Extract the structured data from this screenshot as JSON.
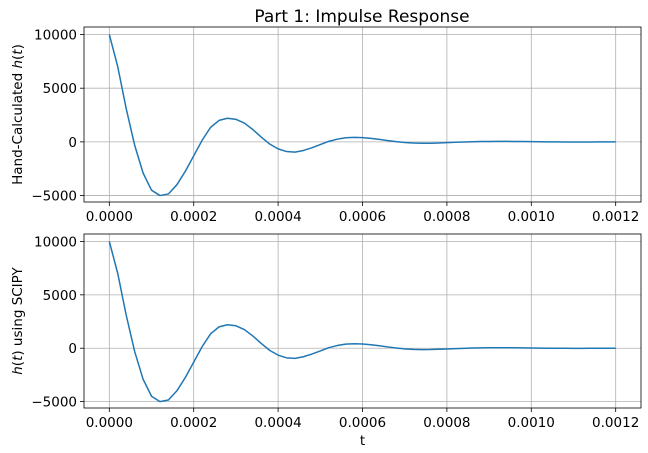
{
  "figure": {
    "title": "Part 1: Impulse Response"
  },
  "colors": {
    "line": "#1f77b4",
    "grid": "#b0b0b0",
    "background": "#ffffff"
  },
  "chart_data": [
    {
      "type": "line",
      "title": "Part 1: Impulse Response",
      "xlabel": "",
      "ylabel_parts": [
        "Hand-Calculated ",
        "h",
        "(",
        "t",
        ")"
      ],
      "xlim": [
        -6e-05,
        0.00126
      ],
      "ylim": [
        -5600,
        10700
      ],
      "x_ticks": [
        0,
        0.0002,
        0.0004,
        0.0006,
        0.0008,
        0.001,
        0.0012
      ],
      "x_tick_labels": [
        "0.0000",
        "0.0002",
        "0.0004",
        "0.0006",
        "0.0008",
        "0.0010",
        "0.0012"
      ],
      "y_ticks": [
        -5000,
        0,
        5000,
        10000
      ],
      "y_tick_labels": [
        "−5000",
        "0",
        "5000",
        "10000"
      ],
      "grid": true,
      "series": [
        {
          "x": [
            0,
            2e-05,
            4e-05,
            6e-05,
            8e-05,
            0.0001,
            0.00012,
            0.00014,
            0.00016,
            0.00018,
            0.0002,
            0.00022,
            0.00024,
            0.00026,
            0.00028,
            0.0003,
            0.00032,
            0.00034,
            0.00036,
            0.00038,
            0.0004,
            0.00042,
            0.00044,
            0.00046,
            0.00048,
            0.0005,
            0.00052,
            0.00054,
            0.00056,
            0.00058,
            0.0006,
            0.00062,
            0.00064,
            0.00066,
            0.00068,
            0.0007,
            0.00072,
            0.00074,
            0.00076,
            0.00078,
            0.0008,
            0.00082,
            0.00084,
            0.00086,
            0.00088,
            0.0009,
            0.00092,
            0.00094,
            0.00096,
            0.00098,
            0.001,
            0.00102,
            0.00104,
            0.00106,
            0.00108,
            0.0011,
            0.00112,
            0.00114,
            0.00116,
            0.00118,
            0.0012
          ],
          "y": [
            10000,
            7000,
            3100,
            -300,
            -2900,
            -4500,
            -5000,
            -4850,
            -4000,
            -2750,
            -1300,
            150,
            1350,
            2000,
            2200,
            2100,
            1750,
            1150,
            450,
            -200,
            -650,
            -900,
            -950,
            -800,
            -550,
            -250,
            50,
            250,
            380,
            420,
            400,
            330,
            230,
            120,
            20,
            -60,
            -110,
            -130,
            -125,
            -100,
            -70,
            -40,
            -10,
            15,
            30,
            40,
            45,
            45,
            40,
            30,
            20,
            10,
            2,
            -4,
            -8,
            -10,
            -10,
            -8,
            -5,
            -2,
            0
          ]
        }
      ]
    },
    {
      "type": "line",
      "title": "",
      "xlabel": "t",
      "ylabel_parts": [
        "",
        "h",
        "(",
        "t",
        ") using SCIPY"
      ],
      "xlim": [
        -6e-05,
        0.00126
      ],
      "ylim": [
        -5600,
        10700
      ],
      "x_ticks": [
        0,
        0.0002,
        0.0004,
        0.0006,
        0.0008,
        0.001,
        0.0012
      ],
      "x_tick_labels": [
        "0.0000",
        "0.0002",
        "0.0004",
        "0.0006",
        "0.0008",
        "0.0010",
        "0.0012"
      ],
      "y_ticks": [
        -5000,
        0,
        5000,
        10000
      ],
      "y_tick_labels": [
        "−5000",
        "0",
        "5000",
        "10000"
      ],
      "grid": true,
      "series": [
        {
          "x": [
            0,
            2e-05,
            4e-05,
            6e-05,
            8e-05,
            0.0001,
            0.00012,
            0.00014,
            0.00016,
            0.00018,
            0.0002,
            0.00022,
            0.00024,
            0.00026,
            0.00028,
            0.0003,
            0.00032,
            0.00034,
            0.00036,
            0.00038,
            0.0004,
            0.00042,
            0.00044,
            0.00046,
            0.00048,
            0.0005,
            0.00052,
            0.00054,
            0.00056,
            0.00058,
            0.0006,
            0.00062,
            0.00064,
            0.00066,
            0.00068,
            0.0007,
            0.00072,
            0.00074,
            0.00076,
            0.00078,
            0.0008,
            0.00082,
            0.00084,
            0.00086,
            0.00088,
            0.0009,
            0.00092,
            0.00094,
            0.00096,
            0.00098,
            0.001,
            0.00102,
            0.00104,
            0.00106,
            0.00108,
            0.0011,
            0.00112,
            0.00114,
            0.00116,
            0.00118,
            0.0012
          ],
          "y": [
            10000,
            7000,
            3100,
            -300,
            -2900,
            -4500,
            -5000,
            -4850,
            -4000,
            -2750,
            -1300,
            150,
            1350,
            2000,
            2200,
            2100,
            1750,
            1150,
            450,
            -200,
            -650,
            -900,
            -950,
            -800,
            -550,
            -250,
            50,
            250,
            380,
            420,
            400,
            330,
            230,
            120,
            20,
            -60,
            -110,
            -130,
            -125,
            -100,
            -70,
            -40,
            -10,
            15,
            30,
            40,
            45,
            45,
            40,
            30,
            20,
            10,
            2,
            -4,
            -8,
            -10,
            -10,
            -8,
            -5,
            -2,
            0
          ]
        }
      ]
    }
  ]
}
